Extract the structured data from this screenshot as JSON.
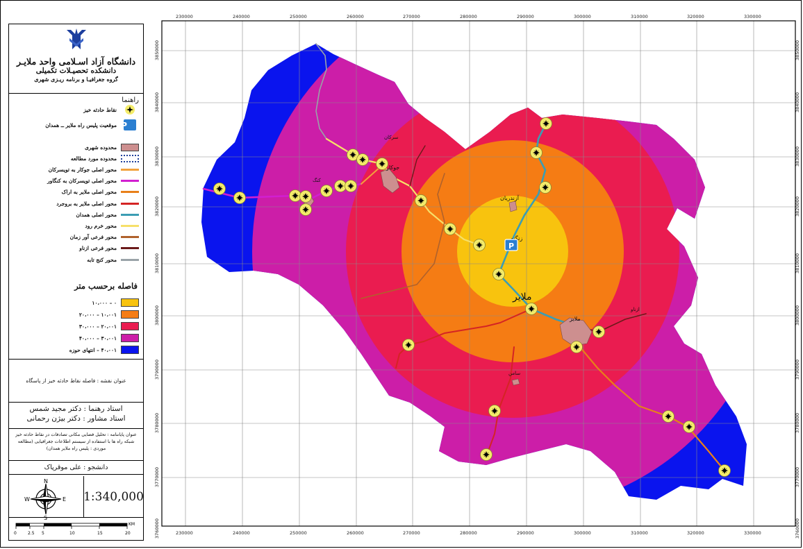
{
  "university": {
    "name": "دانشگاه آزاد اسـلامی واحد ملایـر",
    "faculty": "دانشکده تحصیـلات تکمیلی",
    "department": "گروه جغرافیـا و برنامه ریـزی شهری"
  },
  "legend": {
    "title": "راهنما",
    "items": [
      {
        "label": "نقاط حادثه خیز",
        "symbol": "star",
        "color": "#f4ec6a"
      },
      {
        "label": "موقعیت پلیس راه ملایر ــ همدان",
        "symbol": "police-icon",
        "color": "#2b7fd1"
      },
      {
        "label": "محدوده شهری",
        "symbol": "fill",
        "color": "#cd8f8f"
      },
      {
        "label": "محدوده مورد مطالعه",
        "symbol": "dashed-box",
        "color": "#1e3f9a"
      },
      {
        "label": "محور اصلی جوکار به تویسرکان",
        "symbol": "line",
        "color": "#f2a23c"
      },
      {
        "label": "محور اصلی تویسرکان به کنگاور",
        "symbol": "line",
        "color": "#d21fd0"
      },
      {
        "label": "محور اصلی ملایر به اراک",
        "symbol": "line",
        "color": "#e8801a"
      },
      {
        "label": "محور اصلی ملایر به بروجرد",
        "symbol": "line",
        "color": "#d42424"
      },
      {
        "label": "محور اصلی همدان",
        "symbol": "line",
        "color": "#3c9db3"
      },
      {
        "label": "محور خرم رود",
        "symbol": "line",
        "color": "#f6e06a"
      },
      {
        "label": "محور فرعی آور زمان",
        "symbol": "line",
        "color": "#b0622c"
      },
      {
        "label": "محور فرعی ازناو",
        "symbol": "line",
        "color": "#6b1a1a"
      },
      {
        "label": "محور کنج تابه",
        "symbol": "line",
        "color": "#9aa3a8"
      }
    ],
    "distance_title": "فاصله برحسب متر",
    "classes": [
      {
        "label": "۰ – ۱۰،۰۰۰",
        "color": "#f8c30e"
      },
      {
        "label": "۱۰،۰۰۱ – ۲۰،۰۰۰",
        "color": "#f57c14"
      },
      {
        "label": "۲۰،۰۰۱ – ۳۰،۰۰۰",
        "color": "#ea1c50"
      },
      {
        "label": "۳۰،۰۰۱ – ۴۰،۰۰۰",
        "color": "#cc1ea8"
      },
      {
        "label": "۴۰،۰۰۱ – انتهای حوزه",
        "color": "#0a14ee"
      }
    ]
  },
  "map_title": "عنوان نقشه : فاصله نقاط حادثه خیز از پاسگاه",
  "credits": {
    "advisor_main": "استاد رهنما : دکتر مجید شمس",
    "advisor_consult": "استاد مشاور : دکتر بیژن رحمانی",
    "thesis": "عنوان پایاننامه : تحلیل فضایی مکانی تصادفات در نقاط حادثه خیز شبکه راه ها با استفاده از سیستم اطلاعات جغرافیایی (مطالعه موردی : پلیس راه ملایر همدان)",
    "student": "دانشجو : علی موقرپاک"
  },
  "north_arrow": {
    "n": "N",
    "s": "S",
    "e": "E",
    "w": "W"
  },
  "scale": {
    "ratio": "1:340,000",
    "bar_ticks": [
      "0",
      "2.5",
      "5",
      "10",
      "15",
      "20"
    ],
    "bar_unit": "KM"
  },
  "map": {
    "x_ticks": [
      "230000",
      "240000",
      "250000",
      "260000",
      "270000",
      "280000",
      "290000",
      "300000",
      "310000",
      "320000",
      "330000"
    ],
    "y_ticks": [
      "3850000",
      "3840000",
      "3830000",
      "3820000",
      "3810000",
      "3800000",
      "3790000",
      "3780000",
      "3770000",
      "3760000"
    ],
    "place_labels": {
      "malayer_large": "ملایر",
      "malayer_city": "ملایر",
      "zanganeh": "زنگنه",
      "jowkar": "جوکار",
      "samen": "سامن",
      "azandarian": "آزندریان",
      "ezadiran": "ازناو",
      "city_nw": "سرکان",
      "city_w": "کنگ"
    },
    "buffer_colors": {
      "ring0": "#f8c30e",
      "ring1": "#f57c14",
      "ring2": "#ea1c50",
      "ring3": "#cc1ea8",
      "outer": "#0a14ee"
    }
  }
}
